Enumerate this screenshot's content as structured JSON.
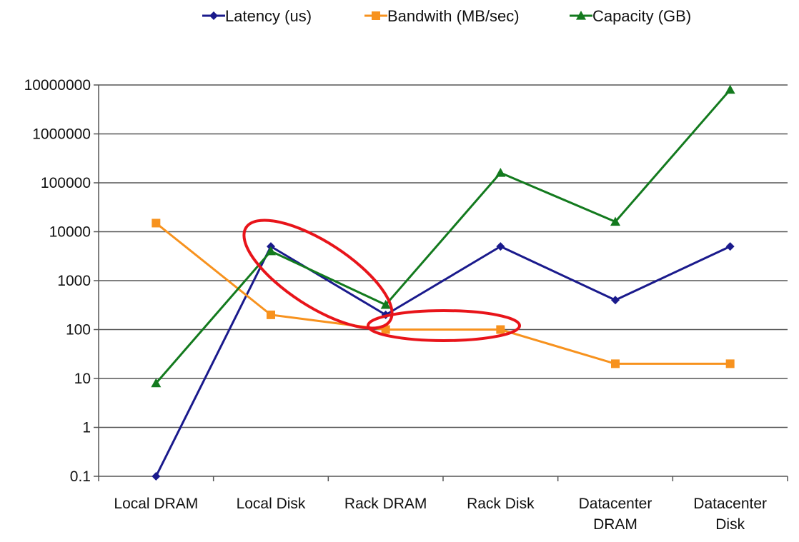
{
  "chart_data": {
    "type": "line",
    "yscale": "log",
    "ylim": [
      0.1,
      10000000
    ],
    "y_ticks": [
      "0.1",
      "1",
      "10",
      "100",
      "1000",
      "10000",
      "100000",
      "1000000",
      "10000000"
    ],
    "grid": "horizontal",
    "legend_position": "top",
    "categories": [
      [
        "Local DRAM"
      ],
      [
        "Local Disk"
      ],
      [
        "Rack DRAM"
      ],
      [
        "Rack Disk"
      ],
      [
        "Datacenter",
        "DRAM"
      ],
      [
        "Datacenter",
        "Disk"
      ]
    ],
    "series": [
      {
        "name": "Latency (us)",
        "color": "#1a1a8c",
        "marker": "diamond",
        "values": [
          0.1,
          5000,
          200,
          5000,
          400,
          5000
        ]
      },
      {
        "name": "Bandwith (MB/sec)",
        "color": "#f7921e",
        "marker": "square",
        "values": [
          15000,
          200,
          100,
          100,
          20,
          20
        ]
      },
      {
        "name": "Capacity (GB)",
        "color": "#137a1e",
        "marker": "triangle",
        "values": [
          8,
          4000,
          320,
          160000,
          16000,
          8000000
        ]
      }
    ],
    "annotations": [
      {
        "type": "ellipse",
        "color": "#e8141a",
        "around": [
          "Local Disk",
          "Rack DRAM"
        ],
        "series": "Latency (us) / Capacity (GB)"
      },
      {
        "type": "ellipse",
        "color": "#e8141a",
        "around": [
          "Rack DRAM",
          "Rack Disk"
        ],
        "series": "Bandwith (MB/sec)"
      }
    ]
  }
}
